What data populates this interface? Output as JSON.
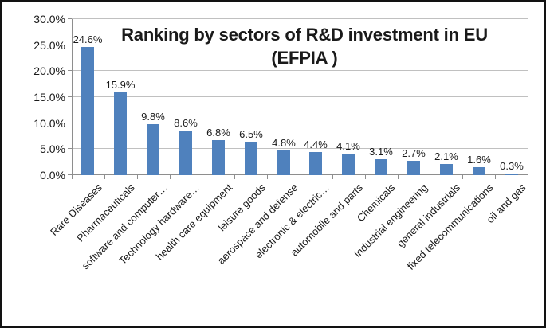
{
  "chart_data": {
    "type": "bar",
    "title": "Ranking by sectors of R&D investment in EU (EFPIA )",
    "title_lines": [
      "Ranking by sectors of R&D investment in EU",
      "(EFPIA )"
    ],
    "categories": [
      "Rare Diseases",
      "Pharmaceuticals",
      "software and computer…",
      "Technology hardware…",
      "health care equipment",
      "leisure goods",
      "aerospace and defense",
      "electronic & electric…",
      "automobile and parts",
      "Chemicals",
      "industrial engineering",
      "general industrials",
      "fixed telecommunications",
      "oil and gas"
    ],
    "values": [
      24.6,
      15.9,
      9.8,
      8.6,
      6.8,
      6.5,
      4.8,
      4.4,
      4.1,
      3.1,
      2.7,
      2.1,
      1.6,
      0.3
    ],
    "value_labels": [
      "24.6%",
      "15.9%",
      "9.8%",
      "8.6%",
      "6.8%",
      "6.5%",
      "4.8%",
      "4.4%",
      "4.1%",
      "3.1%",
      "2.7%",
      "2.1%",
      "1.6%",
      "0.3%"
    ],
    "ytick_values": [
      0,
      5,
      10,
      15,
      20,
      25,
      30
    ],
    "ytick_labels": [
      "0.0%",
      "5.0%",
      "10.0%",
      "15.0%",
      "20.0%",
      "25.0%",
      "30.0%"
    ],
    "ylim": [
      0,
      30
    ],
    "xlabel": "",
    "ylabel": "",
    "legend": "none",
    "grid": "horizontal",
    "colors": {
      "bar": "#4f81bd",
      "gridline": "#c0c0c0",
      "axis": "#8e8e8e",
      "text": "#1a1a1a",
      "background": "#ffffff",
      "frame_border": "#121212"
    }
  }
}
